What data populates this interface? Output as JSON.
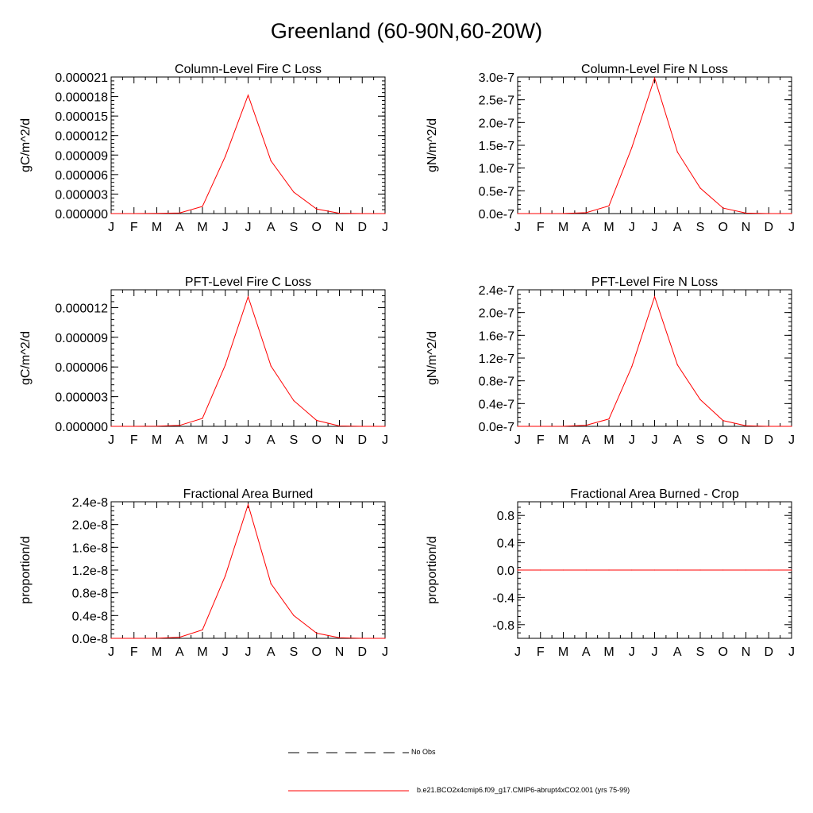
{
  "title": "Greenland (60-90N,60-20W)",
  "legend": [
    {
      "label": "No Obs",
      "style": "dashed",
      "color": "#000000"
    },
    {
      "label": "b.e21.BCO2x4cmip6.f09_g17.CMIP6-abrupt4xCO2.001 (yrs 75-99)",
      "style": "solid",
      "color": "#ff0000"
    }
  ],
  "chart_data": [
    {
      "type": "line",
      "title": "Column-Level Fire C Loss",
      "ylabel": "gC/m^2/d",
      "categories": [
        "J",
        "F",
        "M",
        "A",
        "M",
        "J",
        "J",
        "A",
        "S",
        "O",
        "N",
        "D",
        "J"
      ],
      "ylim": [
        0,
        2.1e-05
      ],
      "yticks": [
        0,
        3e-06,
        6e-06,
        9e-06,
        1.2e-05,
        1.5e-05,
        1.8e-05,
        2.1e-05
      ],
      "ytick_labels": [
        "0.000000",
        "0.000003",
        "0.000006",
        "0.000009",
        "0.000012",
        "0.000015",
        "0.000018",
        "0.000021"
      ],
      "series": [
        {
          "color": "#ff0000",
          "values": [
            0.0,
            0.0,
            2e-08,
            1e-07,
            1.1e-06,
            8.8e-06,
            1.82e-05,
            8.1e-06,
            3.3e-06,
            7e-07,
            5e-08,
            0.0,
            0.0
          ]
        }
      ]
    },
    {
      "type": "line",
      "title": "Column-Level Fire N Loss",
      "ylabel": "gN/m^2/d",
      "categories": [
        "J",
        "F",
        "M",
        "A",
        "M",
        "J",
        "J",
        "A",
        "S",
        "O",
        "N",
        "D",
        "J"
      ],
      "ylim": [
        0,
        3e-07
      ],
      "yticks": [
        0,
        5e-08,
        1e-07,
        1.5e-07,
        2e-07,
        2.5e-07,
        3e-07
      ],
      "ytick_labels": [
        "0.0e-7",
        "0.5e-7",
        "1.0e-7",
        "1.5e-7",
        "2.0e-7",
        "2.5e-7",
        "3.0e-7"
      ],
      "series": [
        {
          "color": "#ff0000",
          "values": [
            0.0,
            0.0,
            2e-10,
            2e-09,
            1.7e-08,
            1.45e-07,
            2.98e-07,
            1.35e-07,
            5.6e-08,
            1.2e-08,
            1e-09,
            0.0,
            0.0
          ]
        }
      ]
    },
    {
      "type": "line",
      "title": "PFT-Level Fire C Loss",
      "ylabel": "gC/m^2/d",
      "categories": [
        "J",
        "F",
        "M",
        "A",
        "M",
        "J",
        "J",
        "A",
        "S",
        "O",
        "N",
        "D",
        "J"
      ],
      "ylim": [
        0,
        1.38e-05
      ],
      "yticks": [
        0,
        3e-06,
        6e-06,
        9e-06,
        1.2e-05
      ],
      "ytick_labels": [
        "0.000000",
        "0.000003",
        "0.000006",
        "0.000009",
        "0.000012"
      ],
      "series": [
        {
          "color": "#ff0000",
          "values": [
            0.0,
            0.0,
            2e-08,
            1e-07,
            8e-07,
            6.2e-06,
            1.31e-05,
            6.1e-06,
            2.6e-06,
            6e-07,
            4e-08,
            0.0,
            0.0
          ]
        }
      ]
    },
    {
      "type": "line",
      "title": "PFT-Level Fire N Loss",
      "ylabel": "gN/m^2/d",
      "categories": [
        "J",
        "F",
        "M",
        "A",
        "M",
        "J",
        "J",
        "A",
        "S",
        "O",
        "N",
        "D",
        "J"
      ],
      "ylim": [
        0,
        2.4e-07
      ],
      "yticks": [
        0,
        4e-08,
        8e-08,
        1.2e-07,
        1.6e-07,
        2e-07,
        2.4e-07
      ],
      "ytick_labels": [
        "0.0e-7",
        "0.4e-7",
        "0.8e-7",
        "1.2e-7",
        "1.6e-7",
        "2.0e-7",
        "2.4e-7"
      ],
      "series": [
        {
          "color": "#ff0000",
          "values": [
            0.0,
            0.0,
            2e-10,
            2e-09,
            1.3e-08,
            1.05e-07,
            2.28e-07,
            1.08e-07,
            4.7e-08,
            1e-08,
            1e-09,
            0.0,
            0.0
          ]
        }
      ]
    },
    {
      "type": "line",
      "title": "Fractional Area Burned",
      "ylabel": "proportion/d",
      "categories": [
        "J",
        "F",
        "M",
        "A",
        "M",
        "J",
        "J",
        "A",
        "S",
        "O",
        "N",
        "D",
        "J"
      ],
      "ylim": [
        0,
        2.4e-08
      ],
      "yticks": [
        0,
        4e-09,
        8e-09,
        1.2e-08,
        1.6e-08,
        2e-08,
        2.4e-08
      ],
      "ytick_labels": [
        "0.0e-8",
        "0.4e-8",
        "0.8e-8",
        "1.2e-8",
        "1.6e-8",
        "2.0e-8",
        "2.4e-8"
      ],
      "series": [
        {
          "color": "#ff0000",
          "values": [
            0.0,
            0.0,
            2e-11,
            2e-10,
            1.5e-09,
            1.1e-08,
            2.35e-08,
            9.6e-09,
            4e-09,
            9e-10,
            1e-10,
            0.0,
            0.0
          ]
        }
      ]
    },
    {
      "type": "line",
      "title": "Fractional Area Burned - Crop",
      "ylabel": "proportion/d",
      "categories": [
        "J",
        "F",
        "M",
        "A",
        "M",
        "J",
        "J",
        "A",
        "S",
        "O",
        "N",
        "D",
        "J"
      ],
      "ylim": [
        -1.0,
        1.0
      ],
      "yticks": [
        -0.8,
        -0.4,
        0.0,
        0.4,
        0.8
      ],
      "ytick_labels": [
        "-0.8",
        "-0.4",
        "0.0",
        "0.4",
        "0.8"
      ],
      "series": [
        {
          "color": "#ff0000",
          "values": [
            0,
            0,
            0,
            0,
            0,
            0,
            0,
            0,
            0,
            0,
            0,
            0,
            0
          ]
        }
      ]
    }
  ]
}
